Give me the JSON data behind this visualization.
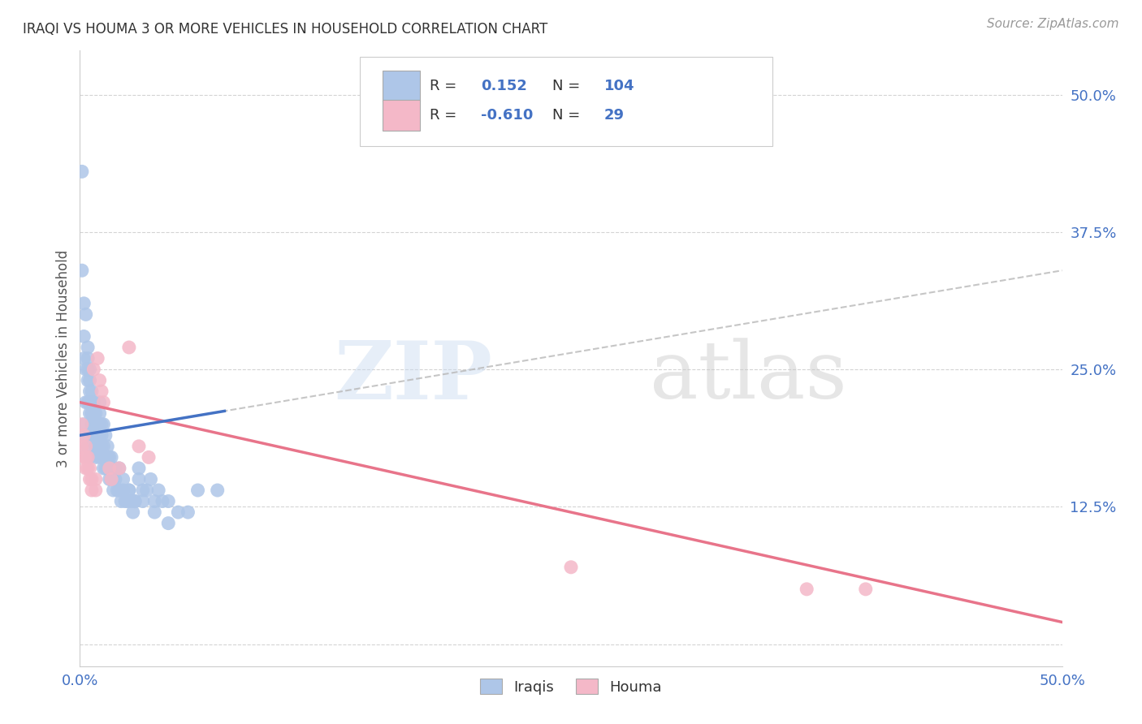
{
  "title": "IRAQI VS HOUMA 3 OR MORE VEHICLES IN HOUSEHOLD CORRELATION CHART",
  "source": "Source: ZipAtlas.com",
  "ylabel": "3 or more Vehicles in Household",
  "xlim": [
    0.0,
    0.5
  ],
  "ylim": [
    -0.02,
    0.54
  ],
  "yticks": [
    0.0,
    0.125,
    0.25,
    0.375,
    0.5
  ],
  "ytick_labels": [
    "",
    "12.5%",
    "25.0%",
    "37.5%",
    "50.0%"
  ],
  "xtick_labels": [
    "0.0%",
    "",
    "",
    "",
    "",
    "",
    "",
    "",
    "",
    "",
    "50.0%"
  ],
  "iraqi_color": "#aec6e8",
  "houma_color": "#f4b8c8",
  "iraqi_line_color": "#4472c4",
  "houma_line_color": "#e8748a",
  "trend_line_color": "#b8b8b8",
  "R_iraqi": 0.152,
  "N_iraqi": 104,
  "R_houma": -0.61,
  "N_houma": 29,
  "watermark_zip": "ZIP",
  "watermark_atlas": "atlas",
  "title_color": "#333333",
  "tick_color": "#4472c4",
  "grid_color": "#d0d0d0",
  "iraqi_x": [
    0.001,
    0.002,
    0.002,
    0.003,
    0.003,
    0.004,
    0.004,
    0.004,
    0.005,
    0.005,
    0.005,
    0.005,
    0.006,
    0.006,
    0.006,
    0.006,
    0.007,
    0.007,
    0.007,
    0.007,
    0.008,
    0.008,
    0.008,
    0.009,
    0.009,
    0.009,
    0.01,
    0.01,
    0.01,
    0.01,
    0.011,
    0.011,
    0.011,
    0.012,
    0.012,
    0.012,
    0.013,
    0.013,
    0.014,
    0.014,
    0.015,
    0.015,
    0.016,
    0.016,
    0.017,
    0.017,
    0.018,
    0.019,
    0.02,
    0.021,
    0.022,
    0.023,
    0.024,
    0.025,
    0.026,
    0.027,
    0.028,
    0.03,
    0.03,
    0.032,
    0.034,
    0.036,
    0.038,
    0.04,
    0.042,
    0.045,
    0.05,
    0.055,
    0.06,
    0.07,
    0.001,
    0.002,
    0.003,
    0.004,
    0.004,
    0.005,
    0.005,
    0.006,
    0.007,
    0.007,
    0.008,
    0.008,
    0.009,
    0.009,
    0.01,
    0.01,
    0.011,
    0.012,
    0.013,
    0.014,
    0.015,
    0.016,
    0.018,
    0.02,
    0.022,
    0.025,
    0.028,
    0.032,
    0.038,
    0.045,
    0.002,
    0.003,
    0.004,
    0.005
  ],
  "iraqi_y": [
    0.43,
    0.28,
    0.26,
    0.25,
    0.22,
    0.26,
    0.24,
    0.22,
    0.25,
    0.24,
    0.22,
    0.21,
    0.23,
    0.22,
    0.21,
    0.2,
    0.22,
    0.21,
    0.2,
    0.19,
    0.21,
    0.2,
    0.19,
    0.2,
    0.19,
    0.18,
    0.2,
    0.19,
    0.18,
    0.17,
    0.19,
    0.18,
    0.17,
    0.18,
    0.17,
    0.16,
    0.17,
    0.16,
    0.17,
    0.16,
    0.16,
    0.15,
    0.16,
    0.15,
    0.15,
    0.14,
    0.15,
    0.14,
    0.14,
    0.13,
    0.14,
    0.13,
    0.13,
    0.14,
    0.13,
    0.12,
    0.13,
    0.16,
    0.15,
    0.14,
    0.14,
    0.15,
    0.13,
    0.14,
    0.13,
    0.13,
    0.12,
    0.12,
    0.14,
    0.14,
    0.34,
    0.31,
    0.3,
    0.27,
    0.25,
    0.23,
    0.22,
    0.21,
    0.2,
    0.19,
    0.18,
    0.17,
    0.19,
    0.18,
    0.22,
    0.21,
    0.2,
    0.2,
    0.19,
    0.18,
    0.17,
    0.17,
    0.16,
    0.16,
    0.15,
    0.14,
    0.13,
    0.13,
    0.12,
    0.11,
    0.2,
    0.19,
    0.18,
    0.17
  ],
  "houma_x": [
    0.001,
    0.001,
    0.002,
    0.002,
    0.003,
    0.003,
    0.003,
    0.004,
    0.004,
    0.005,
    0.005,
    0.006,
    0.006,
    0.007,
    0.008,
    0.008,
    0.009,
    0.01,
    0.011,
    0.012,
    0.015,
    0.016,
    0.02,
    0.025,
    0.03,
    0.035,
    0.25,
    0.37,
    0.4
  ],
  "houma_y": [
    0.2,
    0.18,
    0.19,
    0.17,
    0.18,
    0.17,
    0.16,
    0.17,
    0.16,
    0.16,
    0.15,
    0.15,
    0.14,
    0.25,
    0.15,
    0.14,
    0.26,
    0.24,
    0.23,
    0.22,
    0.16,
    0.15,
    0.16,
    0.27,
    0.18,
    0.17,
    0.07,
    0.05,
    0.05
  ],
  "iraqi_line_x0": 0.0,
  "iraqi_line_y0": 0.19,
  "iraqi_line_x1": 0.5,
  "iraqi_line_y1": 0.34,
  "houma_line_x0": 0.0,
  "houma_line_y0": 0.22,
  "houma_line_x1": 0.5,
  "houma_line_y1": 0.02
}
